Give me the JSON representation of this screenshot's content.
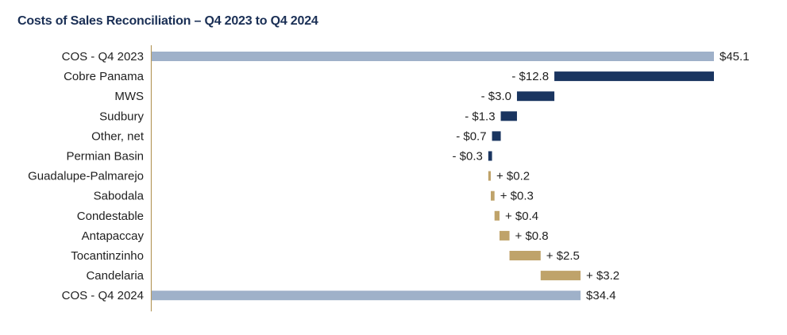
{
  "colors": {
    "total": "#9fb1c9",
    "decrease": "#1a3560",
    "increase": "#bfa36a",
    "axis": "#b59a5e",
    "title": "#1a2f55"
  },
  "chart_data": {
    "type": "bar",
    "subtype": "waterfall-horizontal",
    "title": "Costs of Sales Reconciliation – Q4 2023 to Q4 2024",
    "xlabel": "",
    "ylabel": "",
    "xlim": [
      0,
      45.1
    ],
    "categories": [
      "COS - Q4 2023",
      "Cobre Panama",
      "MWS",
      "Sudbury",
      "Other, net",
      "Permian Basin",
      "Guadalupe-Palmarejo",
      "Sabodala",
      "Condestable",
      "Antapaccay",
      "Tocantinzinho",
      "Candelaria",
      "COS - Q4 2024"
    ],
    "items": [
      {
        "name": "COS - Q4 2023",
        "kind": "total",
        "value": 45.1,
        "label": "$45.1"
      },
      {
        "name": "Cobre Panama",
        "kind": "decrease",
        "value": -12.8,
        "label": "- $12.8"
      },
      {
        "name": "MWS",
        "kind": "decrease",
        "value": -3.0,
        "label": "- $3.0"
      },
      {
        "name": "Sudbury",
        "kind": "decrease",
        "value": -1.3,
        "label": "- $1.3"
      },
      {
        "name": "Other, net",
        "kind": "decrease",
        "value": -0.7,
        "label": "- $0.7"
      },
      {
        "name": "Permian Basin",
        "kind": "decrease",
        "value": -0.3,
        "label": "- $0.3"
      },
      {
        "name": "Guadalupe-Palmarejo",
        "kind": "increase",
        "value": 0.2,
        "label": "+ $0.2"
      },
      {
        "name": "Sabodala",
        "kind": "increase",
        "value": 0.3,
        "label": "+ $0.3"
      },
      {
        "name": "Condestable",
        "kind": "increase",
        "value": 0.4,
        "label": "+ $0.4"
      },
      {
        "name": "Antapaccay",
        "kind": "increase",
        "value": 0.8,
        "label": "+ $0.8"
      },
      {
        "name": "Tocantinzinho",
        "kind": "increase",
        "value": 2.5,
        "label": "+ $2.5"
      },
      {
        "name": "Candelaria",
        "kind": "increase",
        "value": 3.2,
        "label": "+ $3.2"
      },
      {
        "name": "COS - Q4 2024",
        "kind": "total",
        "value": 34.4,
        "label": "$34.4"
      }
    ]
  }
}
